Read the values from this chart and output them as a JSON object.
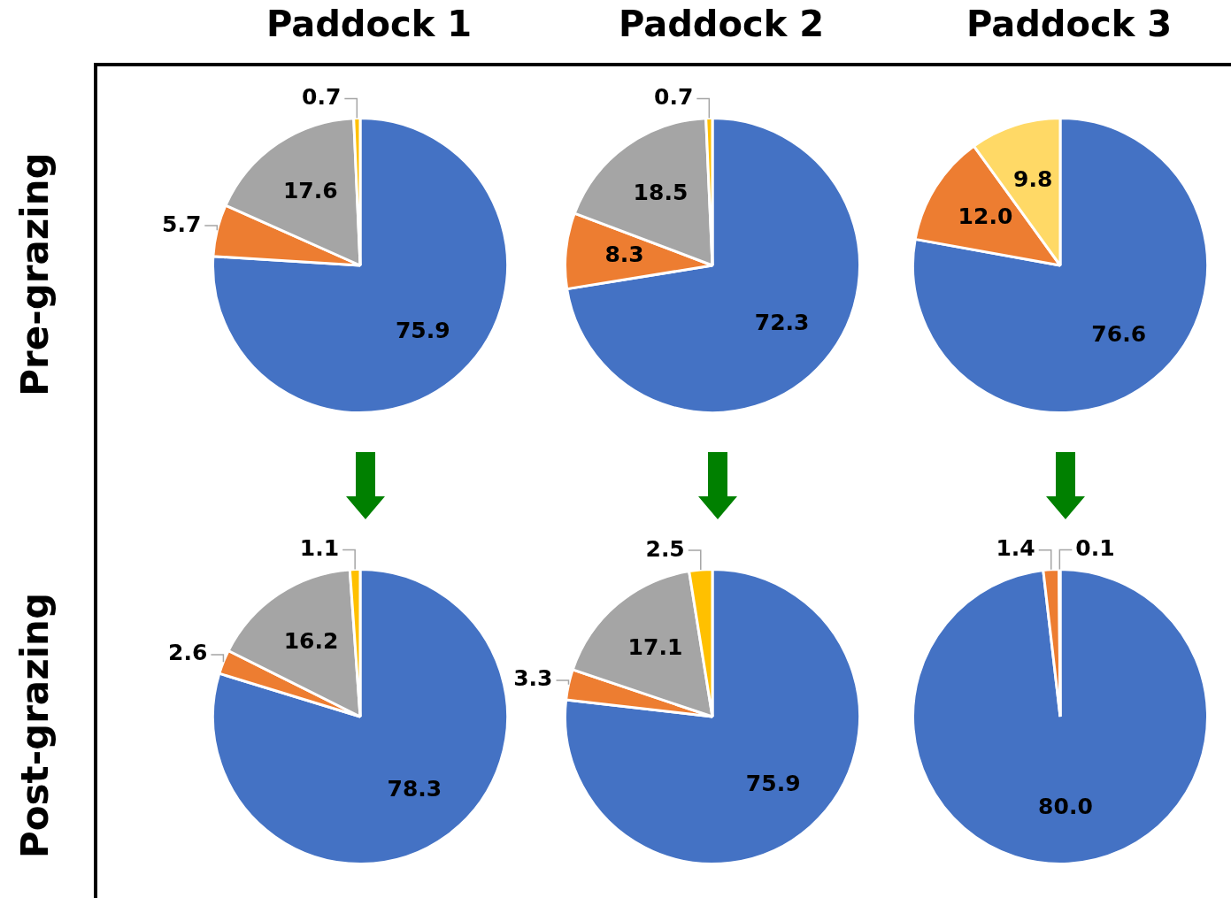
{
  "chart_data": [
    {
      "type": "pie",
      "title": "Paddock 1",
      "ylabel": "Pre-grazing",
      "categories": [
        null,
        null,
        null,
        null
      ],
      "values": [
        75.9,
        5.7,
        17.6,
        0.7
      ],
      "colors": [
        "#4472c4",
        "#ed7d31",
        "#a5a5a5",
        "#ffc000"
      ],
      "value_labels": [
        "75.9",
        "5.7",
        "17.6",
        "0.7"
      ]
    },
    {
      "type": "pie",
      "title": "Paddock 2",
      "categories": [
        null,
        null,
        null,
        null
      ],
      "values": [
        72.3,
        8.3,
        18.5,
        0.7
      ],
      "colors": [
        "#4472c4",
        "#ed7d31",
        "#a5a5a5",
        "#ffc000"
      ],
      "value_labels": [
        "72.3",
        "8.3",
        "18.5",
        "0.7"
      ]
    },
    {
      "type": "pie",
      "title": "Paddock 3",
      "categories": [
        null,
        null,
        null
      ],
      "values": [
        76.6,
        12.0,
        9.8
      ],
      "colors": [
        "#4472c4",
        "#ed7d31",
        "#ffd966"
      ],
      "value_labels": [
        "76.6",
        "12.0",
        "9.8"
      ]
    },
    {
      "type": "pie",
      "ylabel": "Post-grazing",
      "categories": [
        null,
        null,
        null,
        null
      ],
      "values": [
        78.3,
        2.6,
        16.2,
        1.1
      ],
      "colors": [
        "#4472c4",
        "#ed7d31",
        "#a5a5a5",
        "#ffc000"
      ],
      "value_labels": [
        "78.3",
        "2.6",
        "16.2",
        "1.1"
      ]
    },
    {
      "type": "pie",
      "categories": [
        null,
        null,
        null,
        null
      ],
      "values": [
        75.9,
        3.3,
        17.1,
        2.5
      ],
      "colors": [
        "#4472c4",
        "#ed7d31",
        "#a5a5a5",
        "#ffc000"
      ],
      "value_labels": [
        "75.9",
        "3.3",
        "17.1",
        "2.5"
      ]
    },
    {
      "type": "pie",
      "categories": [
        null,
        null,
        null
      ],
      "values": [
        80.0,
        1.4,
        0.1
      ],
      "colors": [
        "#4472c4",
        "#ed7d31",
        "#a5a5a5"
      ],
      "value_labels": [
        "80.0",
        "1.4",
        "0.1"
      ]
    }
  ]
}
